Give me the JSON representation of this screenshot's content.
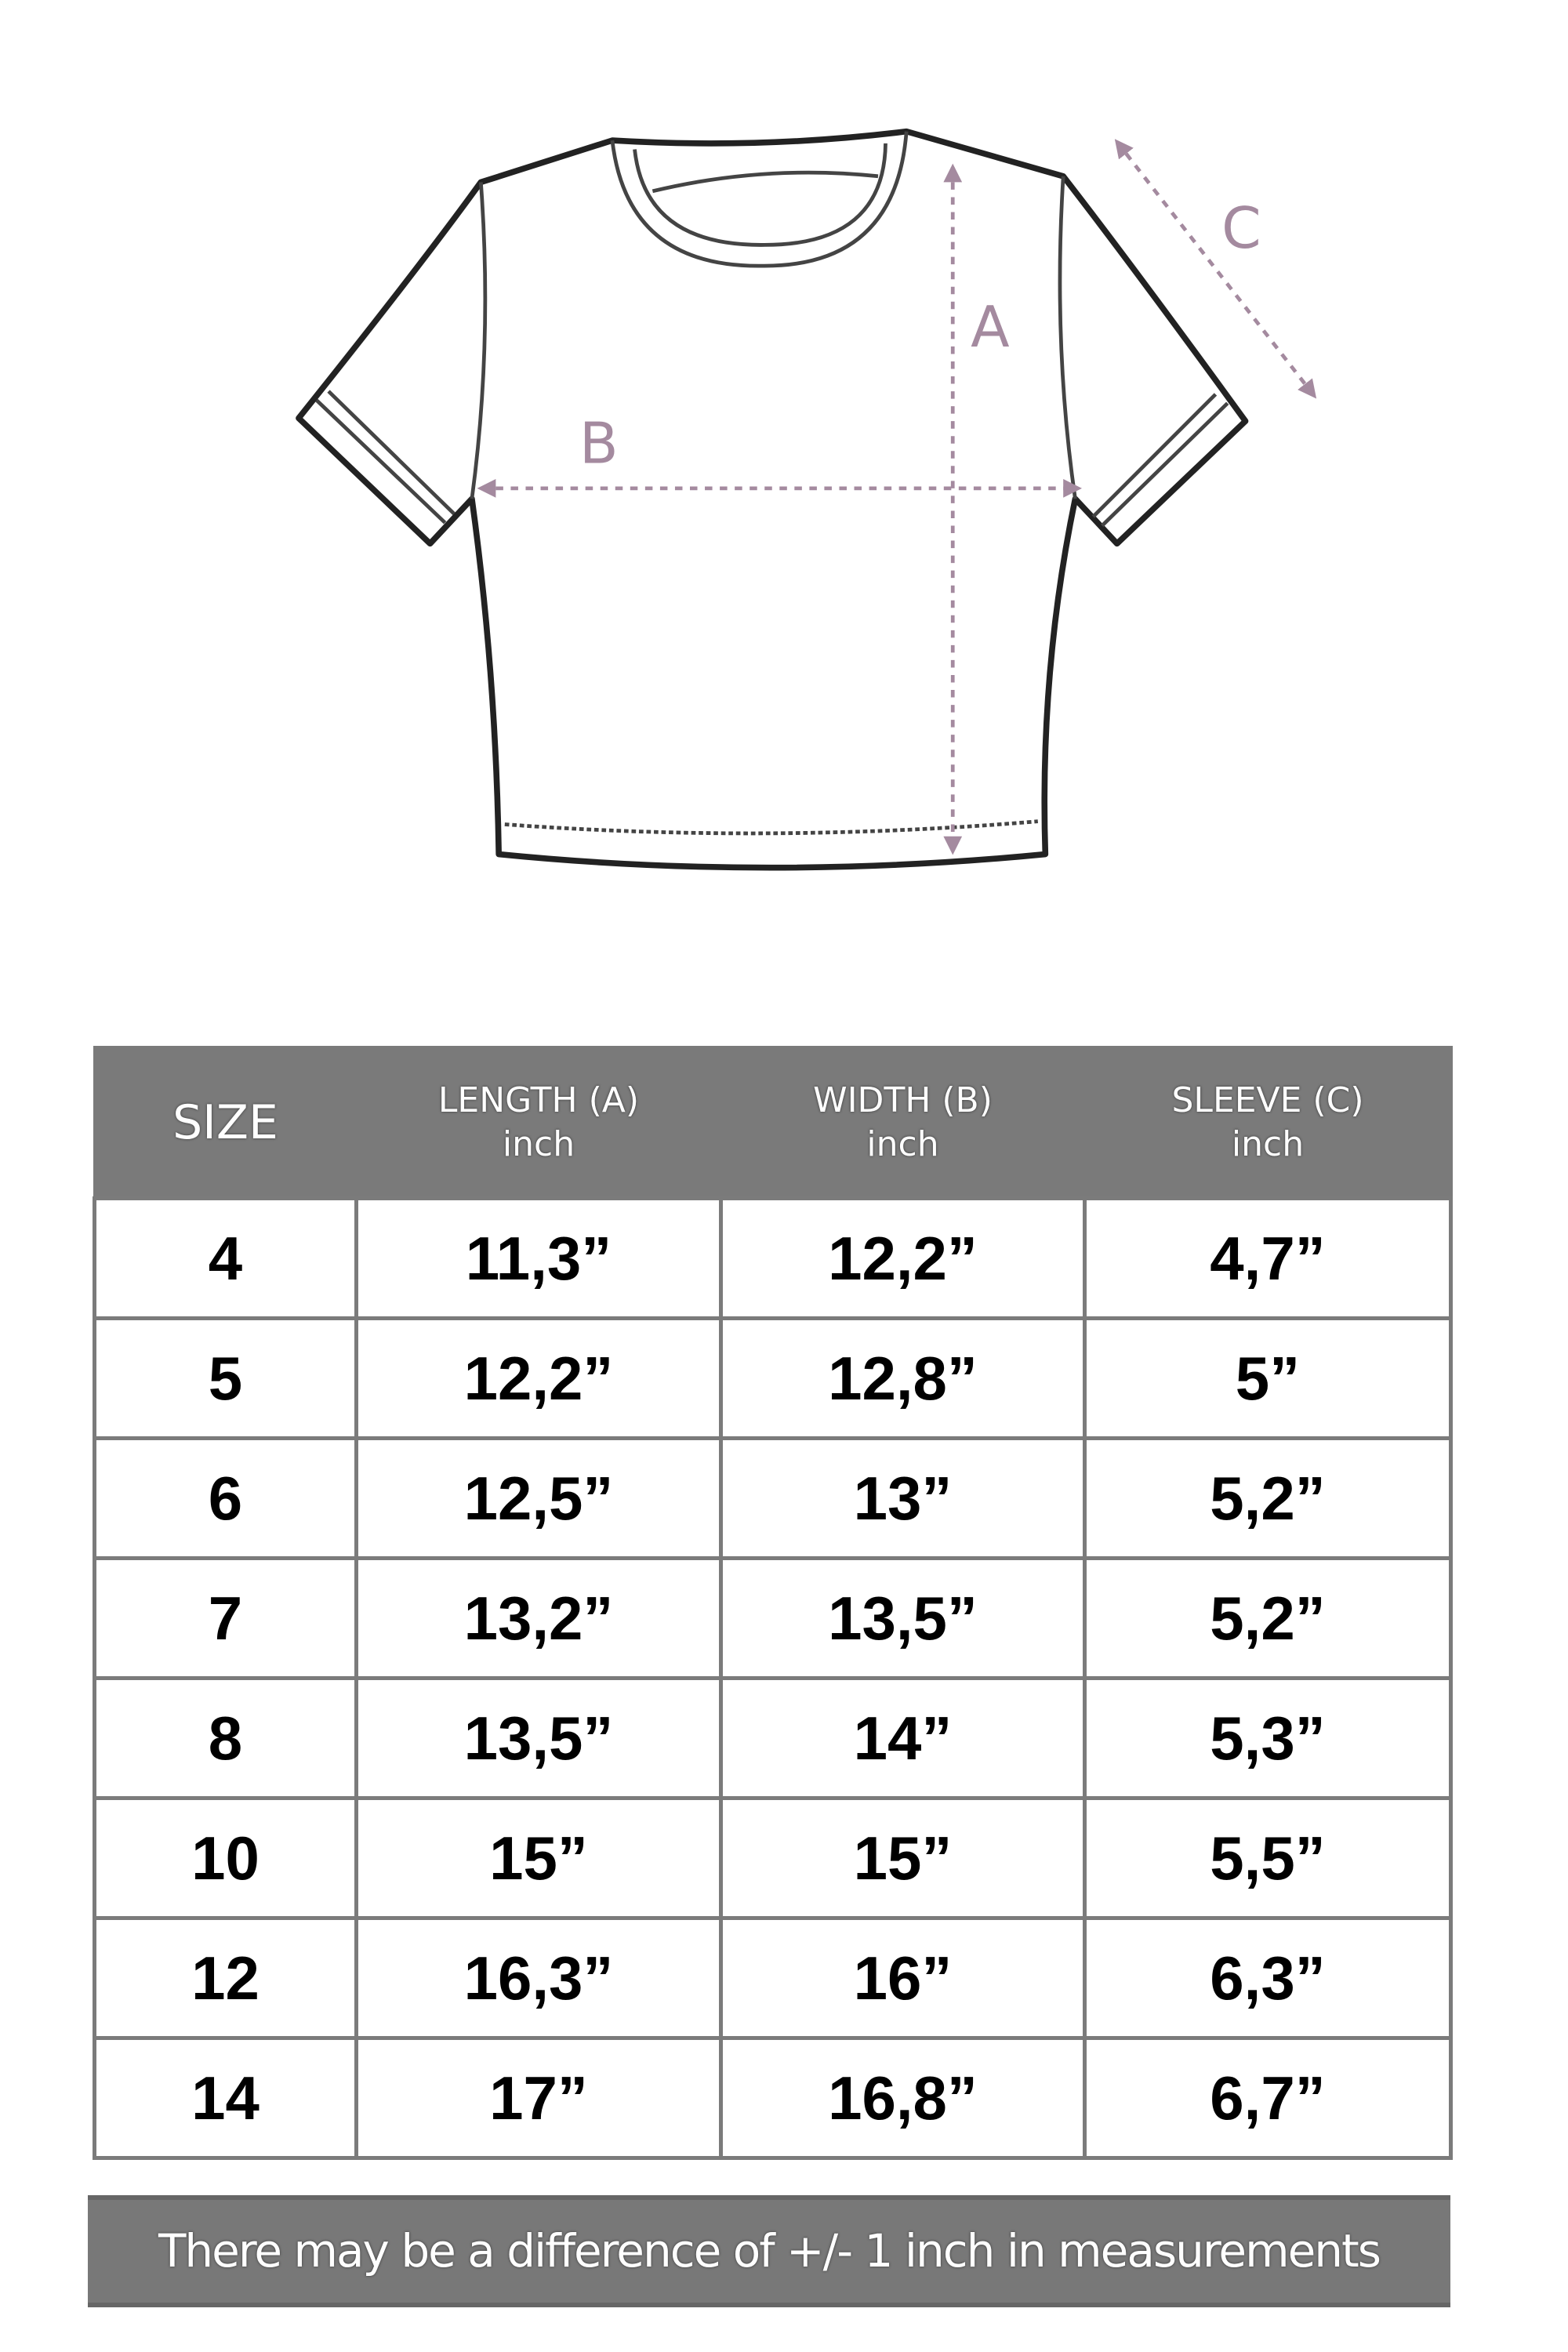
{
  "diagram": {
    "labels": {
      "a": "A",
      "b": "B",
      "c": "C"
    },
    "arrow_color": "#a48a9f"
  },
  "table": {
    "headers": [
      {
        "title": "SIZE",
        "unit": ""
      },
      {
        "title": "LENGTH (A)",
        "unit": "inch"
      },
      {
        "title": "WIDTH (B)",
        "unit": "inch"
      },
      {
        "title": "SLEEVE (C)",
        "unit": "inch"
      }
    ],
    "rows": [
      [
        "4",
        "11,3”",
        "12,2”",
        "4,7”"
      ],
      [
        "5",
        "12,2”",
        "12,8”",
        "5”"
      ],
      [
        "6",
        "12,5”",
        "13”",
        "5,2”"
      ],
      [
        "7",
        "13,2”",
        "13,5”",
        "5,2”"
      ],
      [
        "8",
        "13,5”",
        "14”",
        "5,3”"
      ],
      [
        "10",
        "15”",
        "15”",
        "5,5”"
      ],
      [
        "12",
        "16,3”",
        "16”",
        "6,3”"
      ],
      [
        "14",
        "17”",
        "16,8”",
        "6,7”"
      ]
    ],
    "header_color": "#7a7a7a"
  },
  "footer": {
    "note": "There may be a difference of +/- 1 inch in measurements"
  }
}
